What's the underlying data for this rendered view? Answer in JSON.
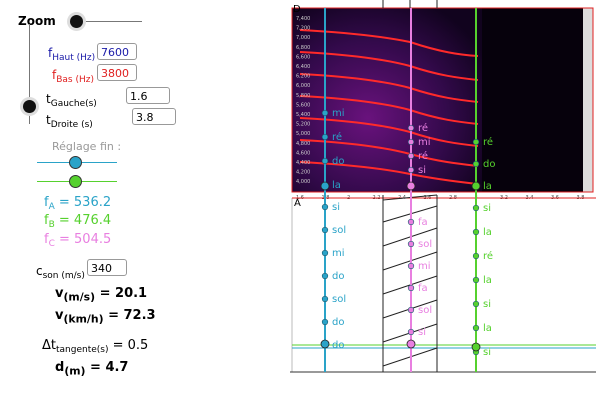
{
  "zoom_label": "Zoom",
  "params": {
    "f_haut": {
      "var": "f",
      "sub": "Haut (Hz)",
      "value": "7600"
    },
    "f_bas": {
      "var": "f",
      "sub": "Bas (Hz)",
      "value": "3800"
    },
    "t_gauche": {
      "var": "t",
      "sub": "Gauche(s)",
      "value": "1.6"
    },
    "t_droite": {
      "var": "t",
      "sub": "Droite (s)",
      "value": "3.8"
    }
  },
  "fine_label": "Réglage fin :",
  "freqs": {
    "fa": {
      "text": "f",
      "sub": "A",
      "val": "= 536.2"
    },
    "fb": {
      "text": "f",
      "sub": "B",
      "val": "= 476.4"
    },
    "fc": {
      "text": "f",
      "sub": "C",
      "val": "= 504.5"
    }
  },
  "c_son": {
    "var": "c",
    "sub": "son (m/s)",
    "value": "340"
  },
  "v_ms": {
    "var": "v",
    "sub": "(m/s)",
    "val": "= 20.1"
  },
  "v_kmh": {
    "var": "v",
    "sub": "(km/h)",
    "val": "= 72.3"
  },
  "dt": {
    "var": "Δt",
    "sub": "tangente(s)",
    "val": "= 0.5"
  },
  "d": {
    "var": "d",
    "sub": "(m)",
    "val": "= 4.7"
  },
  "point_labels": {
    "D": "D",
    "A": "A"
  },
  "y_ticks": [
    "7,400",
    "7,200",
    "7,000",
    "6,800",
    "6,600",
    "6,400",
    "6,200",
    "6,000",
    "5,800",
    "5,600",
    "5,400",
    "5,200",
    "5,000",
    "4,800",
    "4,600",
    "4,400",
    "4,200",
    "4,000"
  ],
  "x_ticks": [
    "1.6",
    "1.8",
    "2",
    "2.2",
    "2.4",
    "2.6",
    "2.8",
    "3",
    "3.2",
    "3.4",
    "3.6",
    "3.8"
  ],
  "blue_notes_top": [
    "mi",
    "ré",
    "do",
    "la"
  ],
  "pink_notes_top": [
    "ré",
    "mi",
    "ré",
    "si"
  ],
  "green_notes_top": [
    "ré",
    "do",
    "la"
  ],
  "blue_notes_bottom": [
    "si",
    "sol",
    "mi",
    "do",
    "sol",
    "do",
    "do"
  ],
  "pink_notes_bottom": [
    "fa",
    "sol",
    "mi",
    "fa",
    "sol",
    "si"
  ],
  "green_notes_bottom": [
    "si",
    "la",
    "ré",
    "la",
    "si",
    "la",
    "si"
  ],
  "colors": {
    "blue": "#2aa3c8",
    "pink": "#e87fe0",
    "green": "#56d12e",
    "red": "#e02020",
    "navy": "#1a1aa8"
  }
}
